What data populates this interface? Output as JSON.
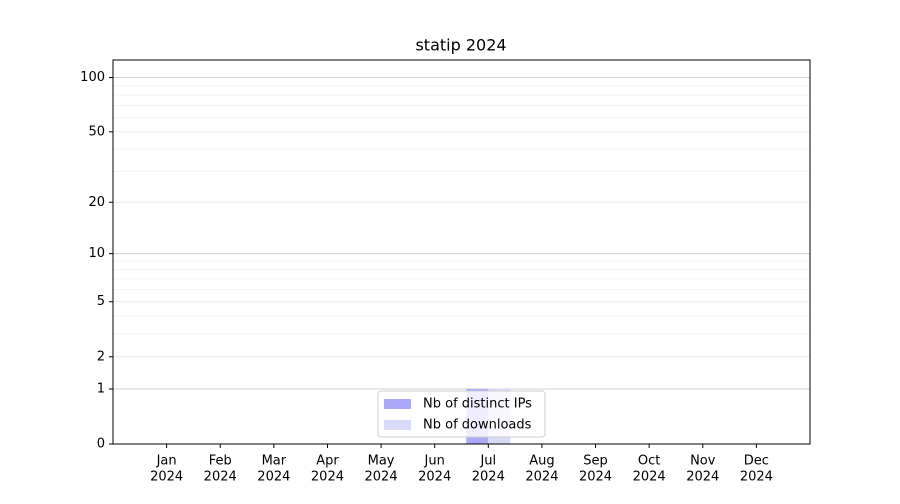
{
  "chart_data": {
    "type": "bar",
    "title": "statip 2024",
    "categories": [
      [
        "Jan",
        "2024"
      ],
      [
        "Feb",
        "2024"
      ],
      [
        "Mar",
        "2024"
      ],
      [
        "Apr",
        "2024"
      ],
      [
        "May",
        "2024"
      ],
      [
        "Jun",
        "2024"
      ],
      [
        "Jul",
        "2024"
      ],
      [
        "Aug",
        "2024"
      ],
      [
        "Sep",
        "2024"
      ],
      [
        "Oct",
        "2024"
      ],
      [
        "Nov",
        "2024"
      ],
      [
        "Dec",
        "2024"
      ]
    ],
    "series": [
      {
        "name": "Nb of distinct IPs",
        "color": "#aaaaf8",
        "values": [
          0,
          0,
          0,
          0,
          0,
          0,
          1,
          0,
          0,
          0,
          0,
          0
        ]
      },
      {
        "name": "Nb of downloads",
        "color": "#dadafa",
        "values": [
          0,
          0,
          0,
          0,
          0,
          0,
          1,
          0,
          0,
          0,
          0,
          0
        ]
      }
    ],
    "yscale": "log1p",
    "ylim": [
      0,
      125
    ],
    "yticks": [
      0,
      1,
      2,
      5,
      10,
      20,
      50,
      100
    ],
    "yminorticks": [
      3,
      4,
      6,
      7,
      8,
      9,
      30,
      40,
      60,
      70,
      80,
      90
    ],
    "grid": true,
    "legend": "lower center"
  }
}
